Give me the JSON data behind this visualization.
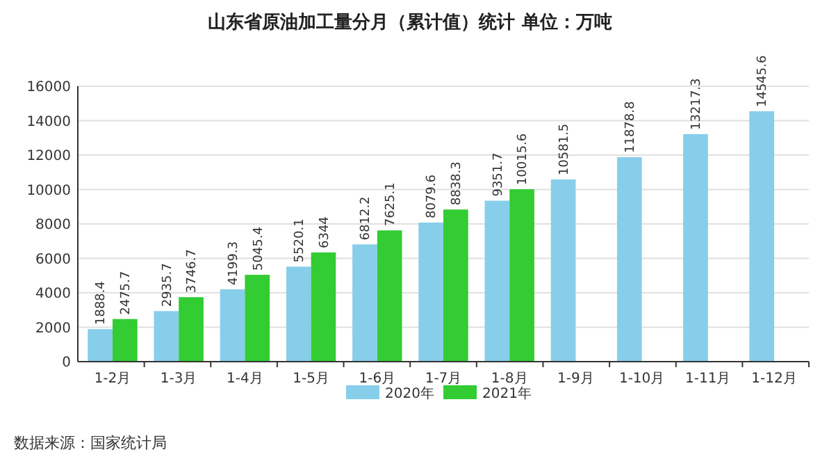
{
  "chart_data": {
    "type": "bar",
    "title": "山东省原油加工量分月（累计值）统计 单位：万吨",
    "categories": [
      "1-2月",
      "1-3月",
      "1-4月",
      "1-5月",
      "1-6月",
      "1-7月",
      "1-8月",
      "1-9月",
      "1-10月",
      "1-11月",
      "1-12月"
    ],
    "series": [
      {
        "name": "2020年",
        "color": "#87ceeb",
        "values": [
          1888.4,
          2935.7,
          4199.3,
          5520.1,
          6812.2,
          8079.6,
          9351.7,
          10581.5,
          11878.8,
          13217.3,
          14545.6
        ]
      },
      {
        "name": "2021年",
        "color": "#33cc33",
        "values": [
          2475.7,
          3746.7,
          5045.4,
          6344,
          7625.1,
          8838.3,
          10015.6,
          null,
          null,
          null,
          null
        ]
      }
    ],
    "ylim": [
      0,
      16000
    ],
    "yticks": [
      0,
      2000,
      4000,
      6000,
      8000,
      10000,
      12000,
      14000,
      16000
    ],
    "grid": "y",
    "legend": "bottom",
    "data_labels": true,
    "annotations": [
      "数据来源：国家统计局"
    ]
  }
}
